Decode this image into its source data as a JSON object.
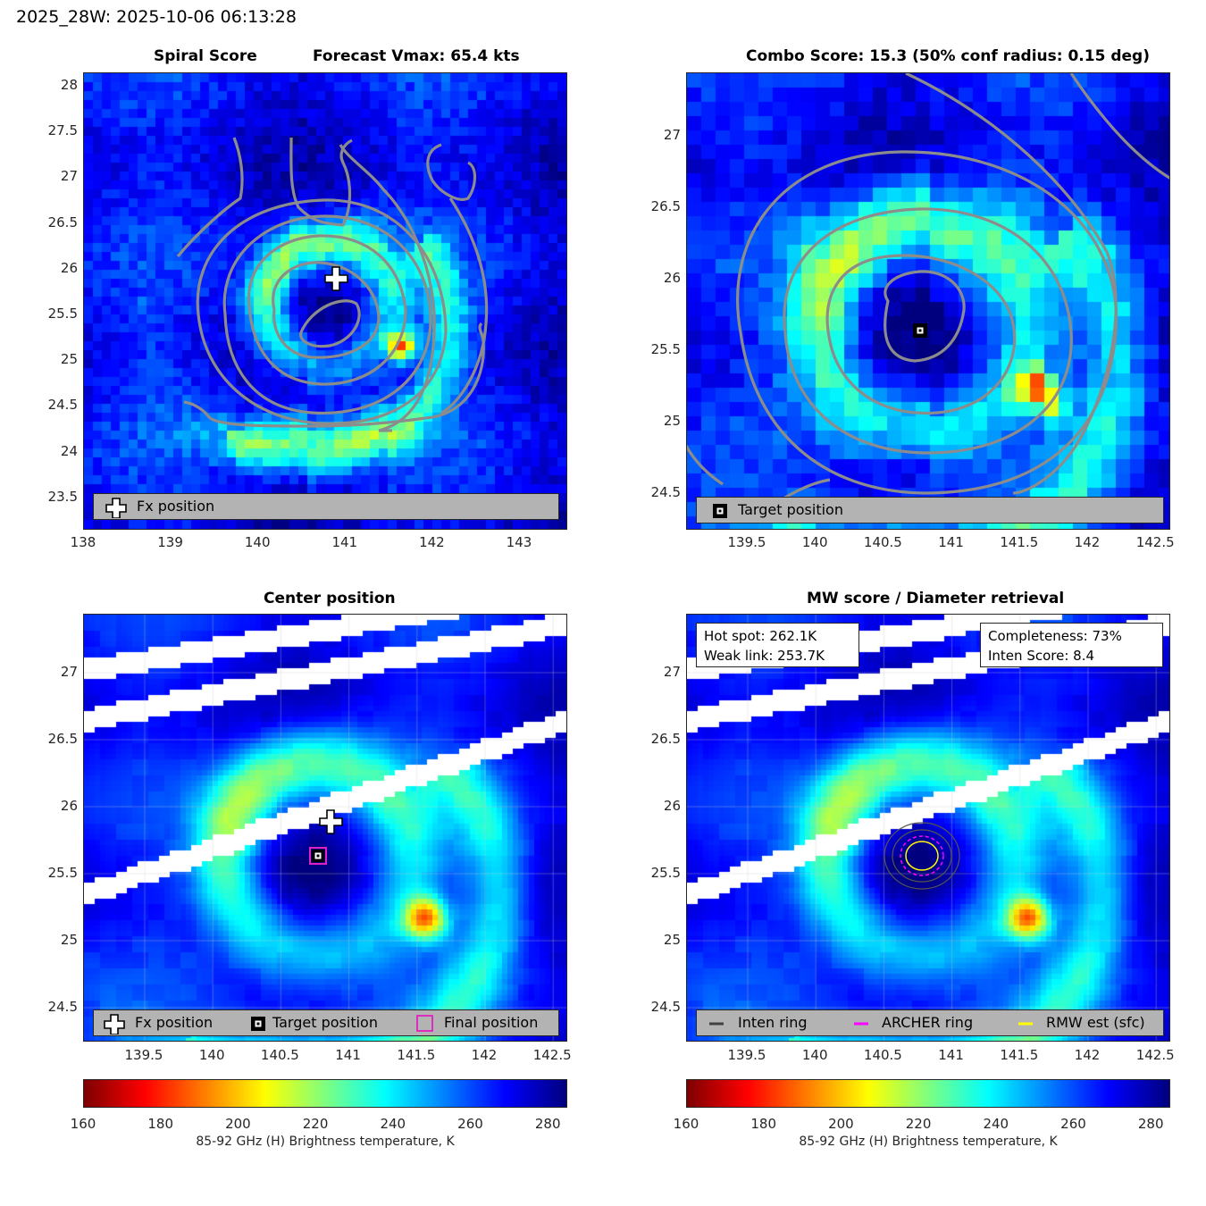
{
  "suptitle": "2025_28W: 2025-10-06 06:13:28",
  "panels": {
    "tl": {
      "title_left": "Spiral Score",
      "title_right": "Forecast Vmax: 65.4 kts",
      "xticks": [
        "138",
        "139",
        "140",
        "141",
        "142",
        "143"
      ],
      "yticks": [
        "28",
        "27.5",
        "27",
        "26.5",
        "26",
        "25.5",
        "25",
        "24.5",
        "24",
        "23.5"
      ],
      "legend": [
        "Fx position"
      ]
    },
    "tr": {
      "title": "Combo Score: 15.3  (50% conf radius: 0.15 deg)",
      "xticks": [
        "139.5",
        "140",
        "140.5",
        "141",
        "141.5",
        "142",
        "142.5"
      ],
      "yticks": [
        "27",
        "26.5",
        "26",
        "25.5",
        "25",
        "24.5"
      ],
      "legend": [
        "Target position"
      ]
    },
    "bl": {
      "title": "Center position",
      "xticks": [
        "139.5",
        "140",
        "140.5",
        "141",
        "141.5",
        "142",
        "142.5"
      ],
      "yticks": [
        "27",
        "26.5",
        "26",
        "25.5",
        "25",
        "24.5"
      ],
      "legend": [
        "Fx position",
        "Target position",
        "Final position"
      ]
    },
    "br": {
      "title": "MW score / Diameter retrieval",
      "xticks": [
        "139.5",
        "140",
        "140.5",
        "141",
        "141.5",
        "142",
        "142.5"
      ],
      "yticks": [
        "27",
        "26.5",
        "26",
        "25.5",
        "25",
        "24.5"
      ],
      "hot_spot": "Hot spot: 262.1K",
      "weak_link": "Weak link: 253.7K",
      "completeness": "Completeness: 73%",
      "inten_score": "Inten Score: 8.4",
      "legend": [
        "Inten ring",
        "ARCHER ring",
        "RMW est (sfc)"
      ]
    }
  },
  "colorbar": {
    "ticks": [
      "160",
      "180",
      "200",
      "220",
      "240",
      "260",
      "280"
    ],
    "label": "85-92 GHz (H) Brightness temperature, K",
    "range": [
      160,
      285
    ],
    "colormap": "jet_reversed"
  },
  "colors": {
    "contour": "#8c8c8c",
    "target_marker": "#000000",
    "final_marker": "#e020c0",
    "archer_ring": "#ff00ff",
    "rmw_ring": "#ffff00",
    "inten_ring": "#404040",
    "legend_bg": "#b3b3b3"
  },
  "chart_data": [
    {
      "type": "heatmap",
      "title": "Spiral Score",
      "subtitle": "Forecast Vmax: 65.4 kts",
      "xlim": [
        138,
        143.5
      ],
      "ylim": [
        23.2,
        28.2
      ],
      "fx_position": {
        "lon": 140.85,
        "lat": 25.83
      },
      "legend": "bottom"
    },
    {
      "type": "heatmap",
      "title": "Combo Score: 15.3  (50% conf radius: 0.15 deg)",
      "xlim": [
        139.1,
        142.6
      ],
      "ylim": [
        24.2,
        27.4
      ],
      "target_position": {
        "lon": 140.77,
        "lat": 25.64
      },
      "legend": "bottom"
    },
    {
      "type": "heatmap",
      "title": "Center position",
      "xlim": [
        139.05,
        142.6
      ],
      "ylim": [
        24.25,
        27.45
      ],
      "fx_position": {
        "lon": 140.85,
        "lat": 25.83
      },
      "target_position": {
        "lon": 140.77,
        "lat": 25.64
      },
      "final_position": {
        "lon": 140.77,
        "lat": 25.64
      },
      "legend": "bottom"
    },
    {
      "type": "heatmap",
      "title": "MW score / Diameter retrieval",
      "xlim": [
        139.05,
        142.6
      ],
      "ylim": [
        24.25,
        27.45
      ],
      "hot_spot_K": 262.1,
      "weak_link_K": 253.7,
      "completeness_pct": 73,
      "inten_score": 8.4,
      "ring_center": {
        "lon": 140.77,
        "lat": 25.64
      },
      "legend": "bottom"
    }
  ]
}
